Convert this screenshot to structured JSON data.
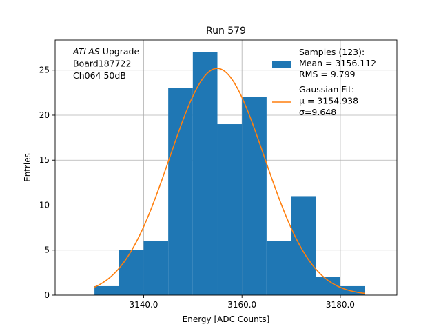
{
  "chart_data": {
    "type": "bar",
    "title": "Run 579",
    "xlabel": "Energy [ADC Counts]",
    "ylabel": "Entries",
    "xlim": [
      3122,
      3191.5
    ],
    "ylim": [
      0,
      28.35
    ],
    "xticks": [
      3140,
      3160,
      3180
    ],
    "xtick_labels": [
      "3140.0",
      "3160.0",
      "3180.0"
    ],
    "yticks": [
      0,
      5,
      10,
      15,
      20,
      25
    ],
    "ytick_labels": [
      "0",
      "5",
      "10",
      "15",
      "20",
      "25"
    ],
    "grid": true,
    "legend_position": "upper-right",
    "bin_width": 5,
    "bins": [
      {
        "x0": 3130,
        "count": 1
      },
      {
        "x0": 3135,
        "count": 5
      },
      {
        "x0": 3140,
        "count": 6
      },
      {
        "x0": 3145,
        "count": 23
      },
      {
        "x0": 3150,
        "count": 27
      },
      {
        "x0": 3155,
        "count": 19
      },
      {
        "x0": 3160,
        "count": 22
      },
      {
        "x0": 3165,
        "count": 6
      },
      {
        "x0": 3170,
        "count": 11
      },
      {
        "x0": 3175,
        "count": 2
      },
      {
        "x0": 3180,
        "count": 1
      }
    ],
    "fit": {
      "mu": 3154.938,
      "sigma": 9.648,
      "amplitude": 25.2,
      "x_range": [
        3130,
        3185
      ]
    },
    "colors": {
      "histogram": "#1f77b4",
      "fit": "#ff7f0e",
      "grid": "#b0b0b0"
    },
    "annotation_lines": [
      {
        "italic": "ATLAS",
        "rest": " Upgrade"
      },
      {
        "italic": "",
        "rest": "Board187722"
      },
      {
        "italic": "",
        "rest": "Ch064 50dB"
      }
    ],
    "legend": {
      "samples_lines": [
        "Samples (123):",
        " Mean = 3156.112",
        " RMS = 9.799"
      ],
      "fit_lines": [
        "Gaussian Fit:",
        " μ = 3154.938",
        " σ=9.648"
      ]
    }
  }
}
